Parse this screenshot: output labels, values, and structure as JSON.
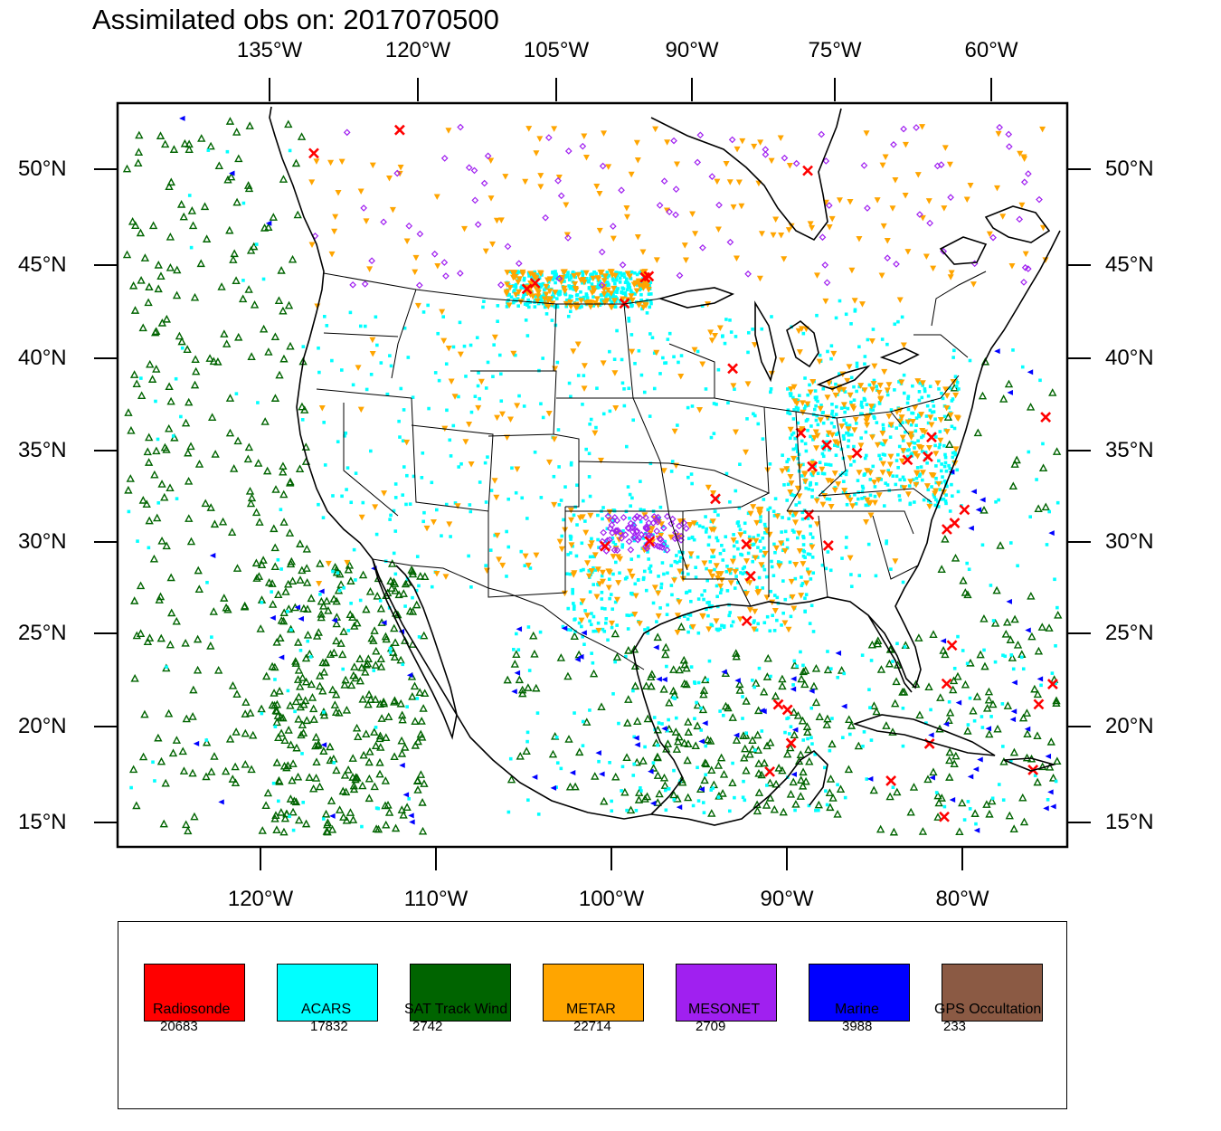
{
  "title": "Assimilated obs on: 2017070500",
  "top_lon_ticks": [
    "135°W",
    "120°W",
    "105°W",
    "90°W",
    "75°W",
    "60°W"
  ],
  "bottom_lon_ticks": [
    "120°W",
    "110°W",
    "100°W",
    "90°W",
    "80°W"
  ],
  "lat_ticks": [
    "50°N",
    "45°N",
    "40°N",
    "35°N",
    "30°N",
    "25°N",
    "20°N",
    "15°N"
  ],
  "legend": [
    {
      "label": "Radiosonde",
      "count": "20683",
      "color": "#ff0000"
    },
    {
      "label": "ACARS",
      "count": "17832",
      "color": "#00ffff"
    },
    {
      "label": "SAT Track Wind",
      "count": "2742",
      "color": "#006400"
    },
    {
      "label": "METAR",
      "count": "22714",
      "color": "#ffa500"
    },
    {
      "label": "MESONET",
      "count": "2709",
      "color": "#a020f0"
    },
    {
      "label": "Marine",
      "count": "3988",
      "color": "#0000ff"
    },
    {
      "label": "GPS Occultation",
      "count": "233",
      "color": "#8b5a44"
    }
  ]
}
